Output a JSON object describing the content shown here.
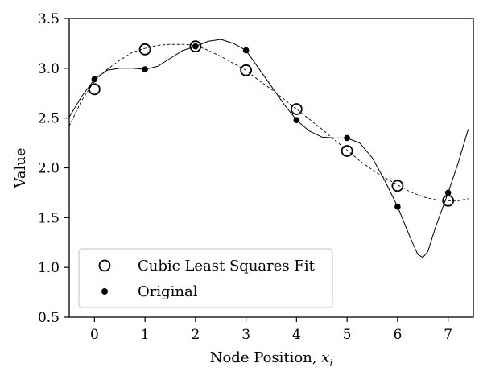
{
  "chart_data": {
    "type": "line",
    "title": "",
    "xlabel": "Node Position, ",
    "xlabel_var": "x",
    "xlabel_sub": "i",
    "ylabel": "Value",
    "xlim": [
      -0.5,
      7.5
    ],
    "ylim": [
      0.5,
      3.5
    ],
    "x_ticks": [
      0,
      1,
      2,
      3,
      4,
      5,
      6,
      7
    ],
    "x_tick_labels": [
      "0",
      "1",
      "2",
      "3",
      "4",
      "5",
      "6",
      "7"
    ],
    "y_ticks": [
      0.5,
      1.0,
      1.5,
      2.0,
      2.5,
      3.0,
      3.5
    ],
    "y_tick_labels": [
      "0.5",
      "1.0",
      "1.5",
      "2.0",
      "2.5",
      "3.0",
      "3.5"
    ],
    "grid": false,
    "legend_position": "lower-left",
    "series": [
      {
        "name": "Cubic Least Squares Fit",
        "kind": "scatter",
        "marker": "open-circle",
        "x": [
          0,
          1,
          2,
          3,
          4,
          5,
          6,
          7
        ],
        "y": [
          2.79,
          3.19,
          3.22,
          2.98,
          2.59,
          2.17,
          1.82,
          1.67
        ]
      },
      {
        "name": "Original",
        "kind": "scatter",
        "marker": "filled-dot",
        "x": [
          0,
          1,
          2,
          3,
          4,
          5,
          6,
          7
        ],
        "y": [
          2.89,
          2.99,
          3.22,
          3.18,
          2.48,
          2.3,
          1.61,
          1.75
        ]
      },
      {
        "kind": "line",
        "style": "solid",
        "x": [
          -0.5,
          -0.25,
          0,
          0.25,
          0.5,
          0.75,
          1,
          1.25,
          1.5,
          1.75,
          2,
          2.25,
          2.5,
          2.75,
          3,
          3.25,
          3.5,
          3.75,
          4,
          4.25,
          4.5,
          4.75,
          5,
          5.25,
          5.5,
          5.75,
          6,
          6.25,
          6.4,
          6.5,
          6.6,
          6.75,
          7,
          7.2,
          7.4
        ],
        "y": [
          2.51,
          2.72,
          2.89,
          2.98,
          3.0,
          3.0,
          2.99,
          3.02,
          3.1,
          3.18,
          3.22,
          3.27,
          3.29,
          3.25,
          3.18,
          3.0,
          2.82,
          2.64,
          2.48,
          2.37,
          2.31,
          2.3,
          2.3,
          2.25,
          2.1,
          1.87,
          1.61,
          1.3,
          1.13,
          1.1,
          1.16,
          1.4,
          1.75,
          2.05,
          2.39
        ]
      },
      {
        "kind": "line",
        "style": "dashed",
        "x": [
          -0.5,
          -0.25,
          0,
          0.25,
          0.5,
          0.75,
          1,
          1.25,
          1.5,
          1.75,
          2,
          2.25,
          2.5,
          2.75,
          3,
          3.25,
          3.5,
          3.75,
          4,
          4.25,
          4.5,
          4.75,
          5,
          5.25,
          5.5,
          5.75,
          6,
          6.25,
          6.5,
          6.75,
          7,
          7.2,
          7.4
        ],
        "y": [
          2.42,
          2.68,
          2.87,
          2.99,
          3.08,
          3.16,
          3.2,
          3.23,
          3.24,
          3.24,
          3.23,
          3.18,
          3.12,
          3.05,
          2.98,
          2.88,
          2.79,
          2.69,
          2.59,
          2.49,
          2.39,
          2.28,
          2.18,
          2.07,
          1.98,
          1.9,
          1.83,
          1.76,
          1.71,
          1.68,
          1.67,
          1.67,
          1.69
        ]
      }
    ]
  }
}
